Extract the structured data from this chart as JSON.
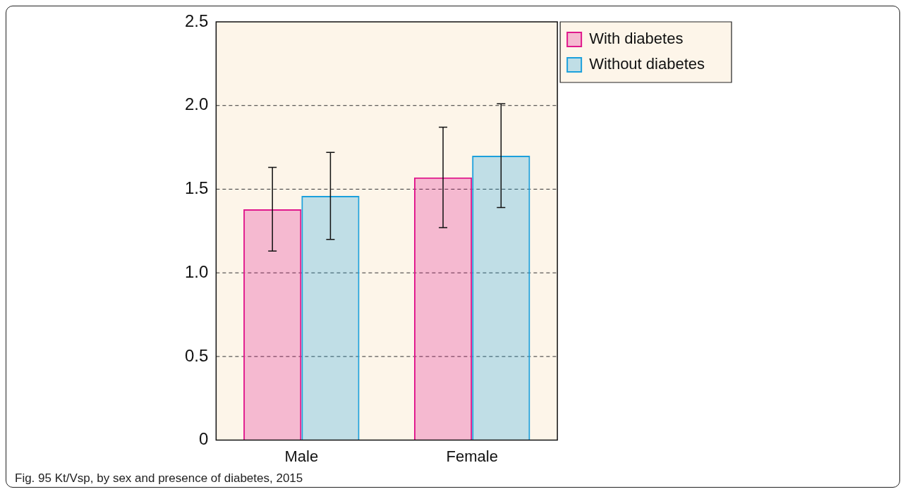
{
  "chart_data": {
    "type": "bar",
    "categories": [
      "Male",
      "Female"
    ],
    "series": [
      {
        "name": "With diabetes",
        "color": "#e0188c",
        "values": [
          1.38,
          1.57
        ],
        "errors": [
          0.25,
          0.3
        ]
      },
      {
        "name": "Without diabetes",
        "color": "#1ca0dc",
        "values": [
          1.46,
          1.7
        ],
        "errors": [
          0.26,
          0.31
        ]
      }
    ],
    "ylim": [
      0,
      2.5
    ],
    "yticks": [
      {
        "value": 0,
        "label": "0"
      },
      0.5,
      {
        "value": 1,
        "label": "1.0"
      },
      1.5,
      {
        "value": 2,
        "label": "2.0"
      },
      2.5
    ],
    "grid": "y",
    "legend": "top right",
    "annotations": [
      "Fig. 95 Kt/Vsp, by sex and presence of diabetes, 2015"
    ]
  }
}
